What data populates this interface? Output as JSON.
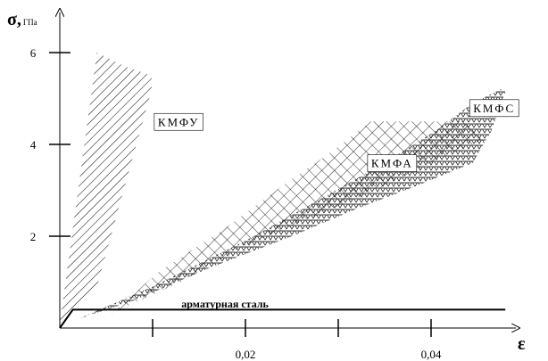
{
  "chart_data": {
    "type": "area",
    "ylabel_symbol": "σ,",
    "ylabel_unit": "ГПа",
    "xlabel": "ε",
    "xlim": [
      0,
      0.05
    ],
    "ylim": [
      0,
      6.5
    ],
    "x_ticks": [
      {
        "value": 0.01,
        "label": ""
      },
      {
        "value": 0.02,
        "label": "0,02"
      },
      {
        "value": 0.03,
        "label": ""
      },
      {
        "value": 0.04,
        "label": "0,04"
      }
    ],
    "y_ticks": [
      {
        "value": 2,
        "label": "2"
      },
      {
        "value": 4,
        "label": "4"
      },
      {
        "value": 6,
        "label": "6"
      }
    ],
    "regions": [
      {
        "name": "КМФУ",
        "pattern": "diagonal",
        "label_pos": [
          0.0128,
          4.5
        ],
        "boundary": [
          [
            0.0,
            0.1
          ],
          [
            0.004,
            6.0
          ],
          [
            0.007,
            5.7
          ],
          [
            0.0099,
            5.5
          ],
          [
            0.0099,
            5.2
          ],
          [
            0.004,
            0.9
          ],
          [
            0.0,
            0.1
          ]
        ]
      },
      {
        "name": "КМФА",
        "pattern": "crosshatch",
        "label_pos": [
          0.0358,
          3.6
        ],
        "boundary": [
          [
            0.0055,
            0.3
          ],
          [
            0.0105,
            1.2
          ],
          [
            0.018,
            2.2
          ],
          [
            0.024,
            3.1
          ],
          [
            0.029,
            3.8
          ],
          [
            0.0335,
            4.5
          ],
          [
            0.0385,
            4.5
          ],
          [
            0.0435,
            4.5
          ],
          [
            0.0455,
            4.1
          ],
          [
            0.041,
            3.7
          ],
          [
            0.035,
            3.1
          ],
          [
            0.027,
            2.4
          ],
          [
            0.02,
            1.8
          ],
          [
            0.013,
            1.0
          ],
          [
            0.0075,
            0.5
          ],
          [
            0.0055,
            0.3
          ]
        ]
      },
      {
        "name": "КМФС",
        "pattern": "triangles",
        "label_pos": [
          0.0468,
          4.8
        ],
        "boundary": [
          [
            0.002,
            0.2
          ],
          [
            0.01,
            0.9
          ],
          [
            0.02,
            1.9
          ],
          [
            0.028,
            2.8
          ],
          [
            0.035,
            3.6
          ],
          [
            0.0405,
            4.3
          ],
          [
            0.0445,
            4.9
          ],
          [
            0.0475,
            5.2
          ],
          [
            0.048,
            5.15
          ],
          [
            0.0465,
            4.3
          ],
          [
            0.0445,
            3.6
          ],
          [
            0.0385,
            3.1
          ],
          [
            0.032,
            2.6
          ],
          [
            0.025,
            2.0
          ],
          [
            0.016,
            1.3
          ],
          [
            0.008,
            0.6
          ],
          [
            0.002,
            0.2
          ]
        ]
      }
    ],
    "lines": [
      {
        "name": "арматурная сталь",
        "label_pos": [
          0.0131,
          0.45
        ],
        "points": [
          [
            0.0,
            0.0
          ],
          [
            0.0014,
            0.4
          ],
          [
            0.048,
            0.4
          ]
        ]
      }
    ]
  }
}
